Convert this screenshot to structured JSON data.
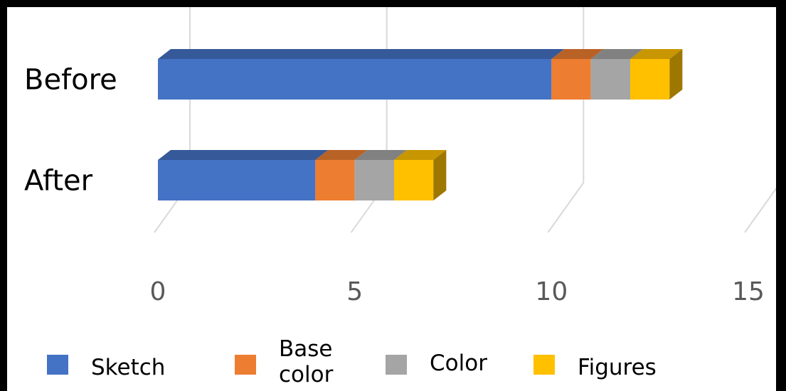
{
  "chart_data": {
    "type": "bar",
    "orientation": "horizontal",
    "stacked": true,
    "style": "3d",
    "categories": [
      "Before",
      "After"
    ],
    "series": [
      {
        "name": "Sketch",
        "values": [
          10,
          4
        ],
        "color": "#4472C4"
      },
      {
        "name": "Base color",
        "values": [
          1,
          1
        ],
        "color": "#ED7D31"
      },
      {
        "name": "Color",
        "values": [
          1,
          1
        ],
        "color": "#A5A5A5"
      },
      {
        "name": "Figures",
        "values": [
          1,
          1
        ],
        "color": "#FFC000"
      }
    ],
    "xlim": [
      0,
      15
    ],
    "x_ticks": [
      "0",
      "5",
      "10",
      "15"
    ],
    "grid": true,
    "legend": "bottom",
    "title": "",
    "xlabel": "",
    "ylabel": ""
  }
}
